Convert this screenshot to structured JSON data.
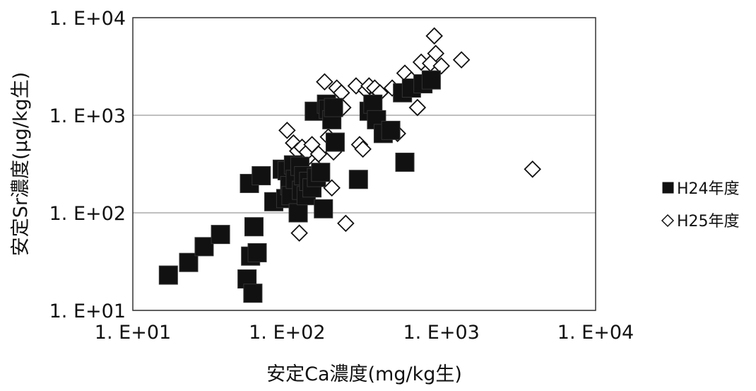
{
  "chart_data": {
    "type": "scatter",
    "title": "",
    "xlabel": "安定Ca濃度(mg/kg生)",
    "ylabel": "安定Sr濃度(μg/kg生)",
    "x_scale": "log",
    "y_scale": "log",
    "xlim": [
      10,
      10000
    ],
    "ylim": [
      10,
      10000
    ],
    "x_ticks": [
      "1. E+01",
      "1. E+02",
      "1. E+03",
      "1. E+04"
    ],
    "y_ticks": [
      "1. E+01",
      "1. E+02",
      "1. E+03",
      "1. E+04"
    ],
    "grid": "horizontal",
    "legend_position": "right",
    "series": [
      {
        "name": "H24年度",
        "marker": "filled-square",
        "color": "#111111",
        "points": [
          [
            17,
            23
          ],
          [
            23,
            31
          ],
          [
            29,
            45
          ],
          [
            37,
            60
          ],
          [
            55,
            21
          ],
          [
            57,
            200
          ],
          [
            58,
            36
          ],
          [
            60,
            15
          ],
          [
            61,
            72
          ],
          [
            64,
            39
          ],
          [
            68,
            240
          ],
          [
            82,
            130
          ],
          [
            93,
            280
          ],
          [
            98,
            140
          ],
          [
            100,
            270
          ],
          [
            104,
            190
          ],
          [
            106,
            150
          ],
          [
            110,
            310
          ],
          [
            113,
            220
          ],
          [
            118,
            100
          ],
          [
            121,
            300
          ],
          [
            124,
            170
          ],
          [
            128,
            240
          ],
          [
            133,
            150
          ],
          [
            138,
            210
          ],
          [
            145,
            180
          ],
          [
            150,
            1100
          ],
          [
            155,
            230
          ],
          [
            165,
            260
          ],
          [
            172,
            110
          ],
          [
            180,
            1300
          ],
          [
            185,
            1150
          ],
          [
            195,
            900
          ],
          [
            200,
            1200
          ],
          [
            205,
            530
          ],
          [
            290,
            220
          ],
          [
            340,
            1100
          ],
          [
            360,
            1300
          ],
          [
            380,
            900
          ],
          [
            420,
            650
          ],
          [
            470,
            700
          ],
          [
            560,
            1700
          ],
          [
            580,
            330
          ],
          [
            640,
            1900
          ],
          [
            760,
            2100
          ],
          [
            860,
            2300
          ]
        ]
      },
      {
        "name": "H25年度",
        "marker": "open-diamond",
        "color": "#111111",
        "points": [
          [
            100,
            700
          ],
          [
            110,
            520
          ],
          [
            117,
            430
          ],
          [
            120,
            62
          ],
          [
            125,
            470
          ],
          [
            135,
            420
          ],
          [
            145,
            500
          ],
          [
            152,
            300
          ],
          [
            160,
            400
          ],
          [
            175,
            2200
          ],
          [
            185,
            600
          ],
          [
            195,
            180
          ],
          [
            200,
            420
          ],
          [
            210,
            1900
          ],
          [
            225,
            1700
          ],
          [
            230,
            1200
          ],
          [
            240,
            78
          ],
          [
            280,
            2000
          ],
          [
            295,
            500
          ],
          [
            310,
            450
          ],
          [
            325,
            1800
          ],
          [
            340,
            2000
          ],
          [
            370,
            1900
          ],
          [
            400,
            1700
          ],
          [
            440,
            700
          ],
          [
            480,
            1900
          ],
          [
            520,
            650
          ],
          [
            580,
            2700
          ],
          [
            640,
            2300
          ],
          [
            700,
            1200
          ],
          [
            740,
            3500
          ],
          [
            850,
            3400
          ],
          [
            900,
            6500
          ],
          [
            920,
            4300
          ],
          [
            1000,
            3200
          ],
          [
            1350,
            3700
          ],
          [
            3900,
            280
          ]
        ]
      }
    ]
  },
  "legend": {
    "h24_label": "H24年度",
    "h25_label": "H25年度"
  }
}
